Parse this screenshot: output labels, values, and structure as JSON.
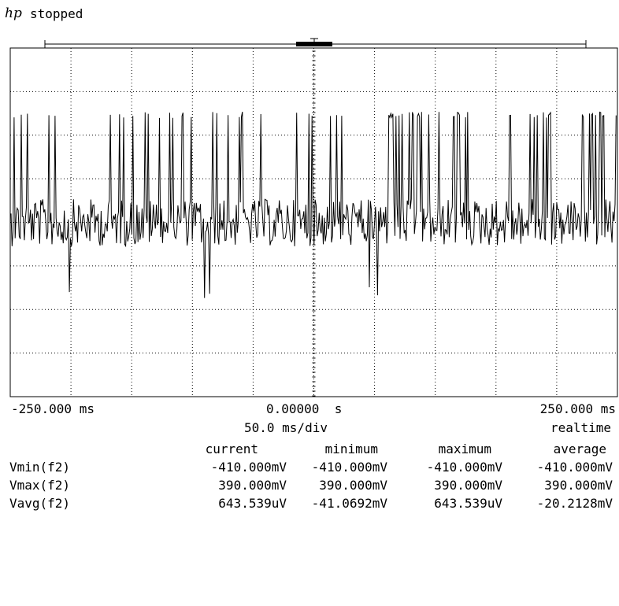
{
  "header": {
    "logo": "hp",
    "status": "stopped"
  },
  "scope": {
    "trace_color": "#000000",
    "grid_color": "#000000",
    "time_left": "-250.000 ms",
    "time_center": "0.00000  s",
    "time_right": "250.000 ms",
    "timebase": "50.0 ms/div",
    "acquisition_mode": "realtime"
  },
  "measurements": {
    "headers": [
      "current",
      "minimum",
      "maximum",
      "average"
    ],
    "rows": [
      {
        "label": "Vmin(f2)",
        "values": [
          "-410.000mV",
          "-410.000mV",
          "-410.000mV",
          "-410.000mV"
        ]
      },
      {
        "label": "Vmax(f2)",
        "values": [
          "390.000mV",
          "390.000mV",
          "390.000mV",
          "390.000mV"
        ]
      },
      {
        "label": "Vavg(f2)",
        "values": [
          "643.539uV",
          "-41.0692mV",
          "643.539uV",
          "-20.2128mV"
        ]
      }
    ]
  }
}
